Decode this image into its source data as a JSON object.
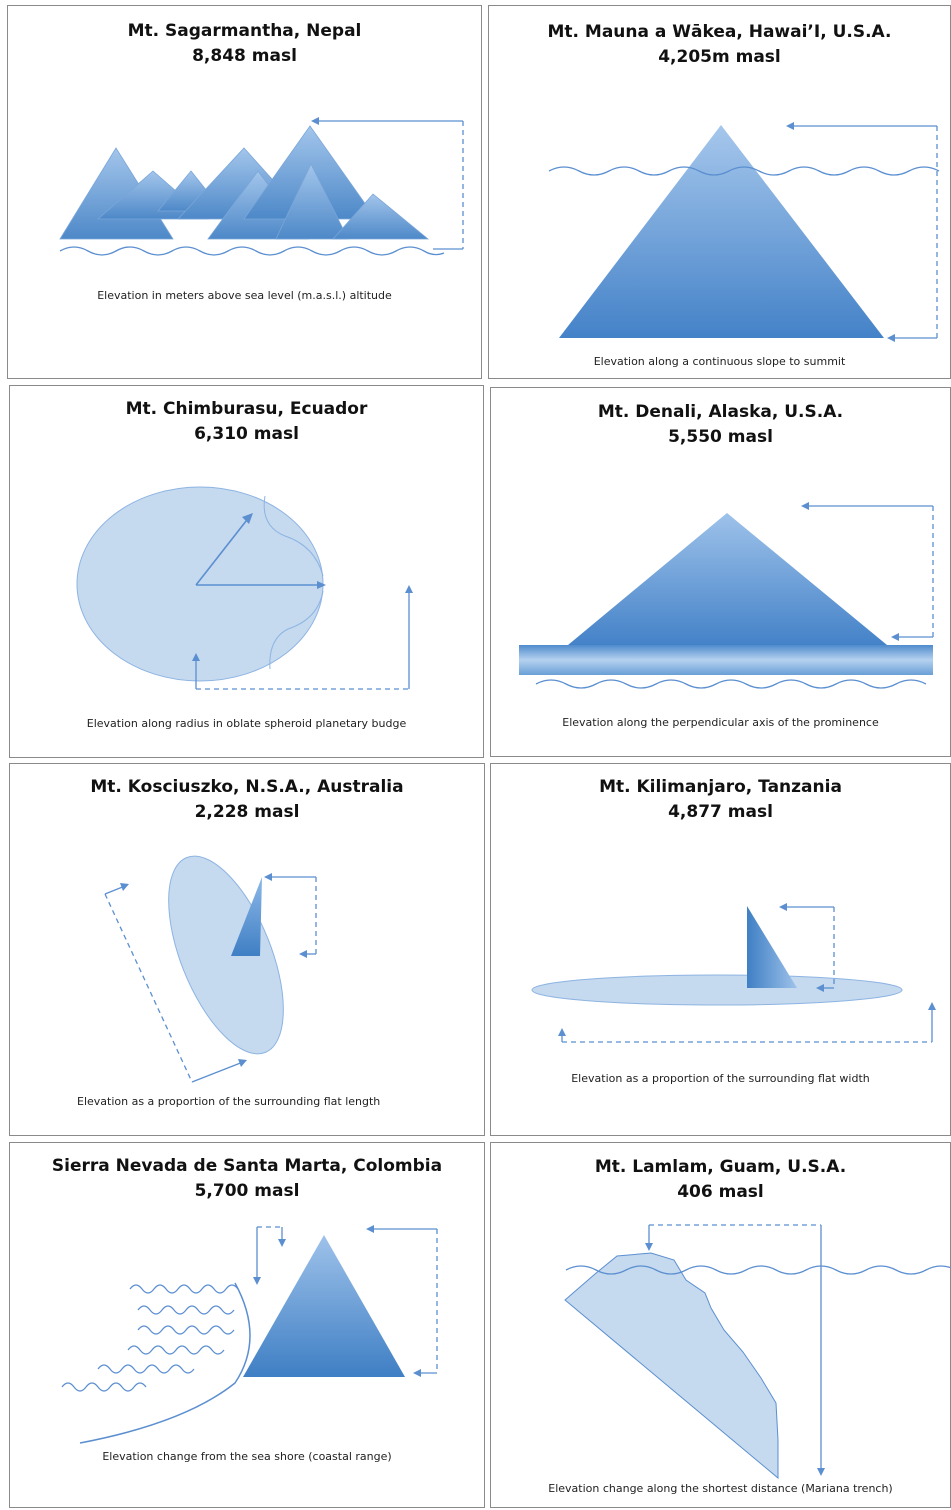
{
  "panels": [
    {
      "title": "Mt. Sagarmantha, Nepal",
      "elevation": "8,848 masl",
      "caption": "Elevation in meters above sea level (m.a.s.l.) altitude"
    },
    {
      "title": "Mt. Mauna a Wākea, Hawai’I, U.S.A.",
      "elevation": "4,205m masl",
      "caption": "Elevation along a continuous slope to summit"
    },
    {
      "title": "Mt. Chimburasu, Ecuador",
      "elevation": "6,310 masl",
      "caption": "Elevation along radius in oblate spheroid planetary budge"
    },
    {
      "title": "Mt. Denali, Alaska, U.S.A.",
      "elevation": "5,550 masl",
      "caption": "Elevation along the perpendicular axis of the prominence"
    },
    {
      "title": "Mt. Kosciuszko, N.S.A., Australia",
      "elevation": "2,228 masl",
      "caption": "Elevation as a proportion of the surrounding flat length"
    },
    {
      "title": "Mt. Kilimanjaro, Tanzania",
      "elevation": "4,877 masl",
      "caption": "Elevation as a proportion of the surrounding flat width"
    },
    {
      "title": "Sierra Nevada de Santa Marta, Colombia",
      "elevation": "5,700 masl",
      "caption": "Elevation change from the sea shore (coastal range)"
    },
    {
      "title": "Mt. Lamlam, Guam, U.S.A.",
      "elevation": "406 masl",
      "caption": "Elevation change along the shortest distance  (Mariana trench)"
    }
  ],
  "colors": {
    "mountain_dark": "#4a86c8",
    "mountain_light": "#a9c8ea",
    "pale_fill": "#c5d9ef",
    "line": "#5b8fd0",
    "border": "#8a8a8a"
  }
}
